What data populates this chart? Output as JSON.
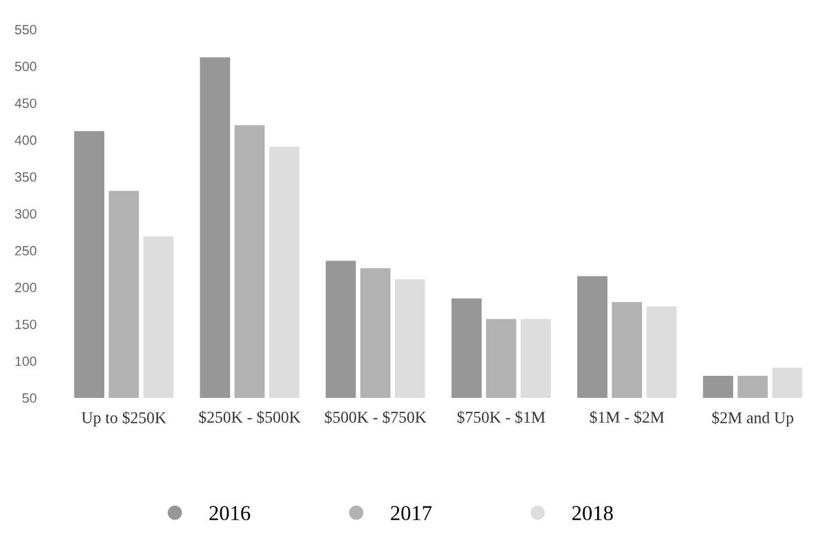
{
  "chart_data": {
    "type": "bar",
    "categories": [
      "Up to $250K",
      "$250K - $500K",
      "$500K - $750K",
      "$750K - $1M",
      "$1M - $2M",
      "$2M and Up"
    ],
    "series": [
      {
        "name": "2016",
        "color": "#979797",
        "values": [
          412,
          512,
          236,
          185,
          215,
          80
        ]
      },
      {
        "name": "2017",
        "color": "#b2b2b2",
        "values": [
          331,
          420,
          226,
          157,
          180,
          80
        ]
      },
      {
        "name": "2018",
        "color": "#dddddd",
        "values": [
          269,
          391,
          211,
          157,
          174,
          91
        ]
      }
    ],
    "ylim": [
      50,
      550
    ],
    "yticks": [
      50,
      100,
      150,
      200,
      250,
      300,
      350,
      400,
      450,
      500,
      550
    ],
    "grid": false,
    "legend": "bottom",
    "marker": "circle"
  }
}
